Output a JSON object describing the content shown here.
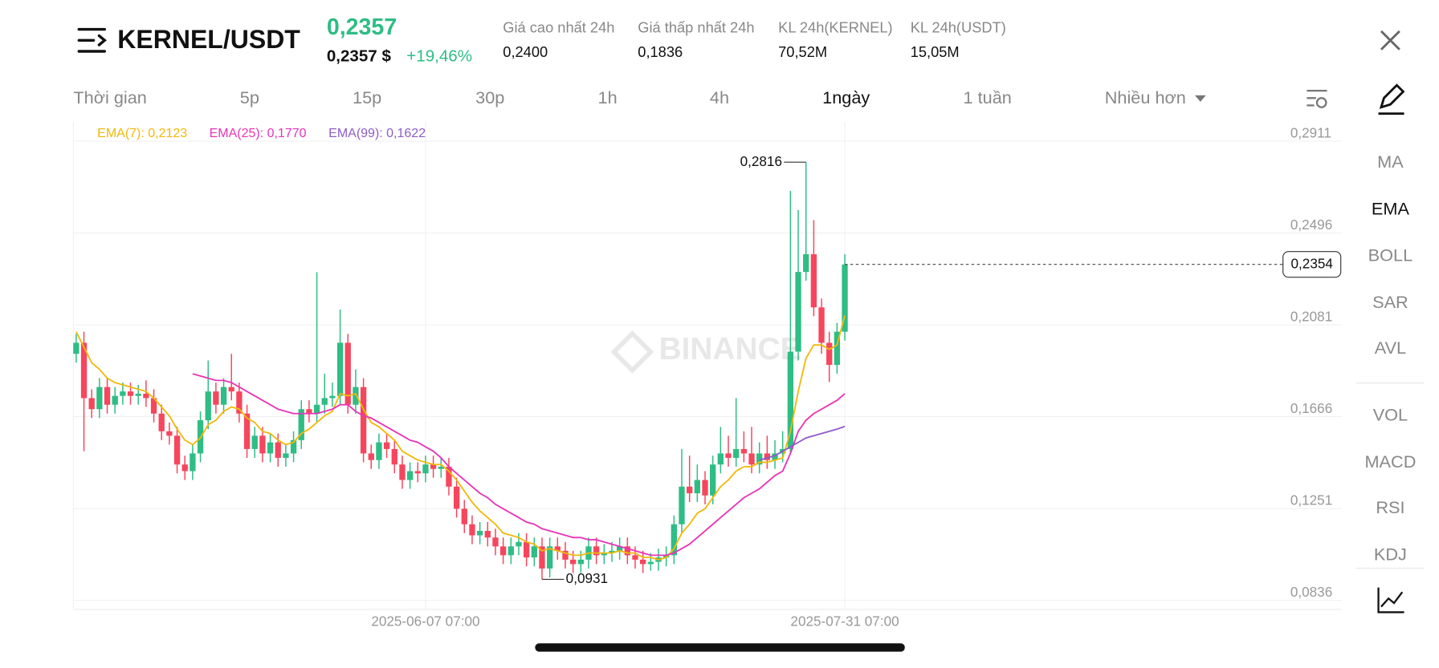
{
  "header": {
    "pair": "KERNEL/USDT",
    "price": "0,2357",
    "price_usd": "0,2357 $",
    "change": "+19,46%",
    "stats": [
      {
        "label": "Giá cao nhất 24h",
        "value": "0,2400"
      },
      {
        "label": "Giá thấp nhất 24h",
        "value": "0,1836"
      },
      {
        "label": "KL 24h(KERNEL)",
        "value": "70,52M"
      },
      {
        "label": "KL 24h(USDT)",
        "value": "15,05M"
      }
    ]
  },
  "intervals": [
    "Thời gian",
    "5p",
    "15p",
    "30p",
    "1h",
    "4h",
    "1ngày",
    "1 tuần",
    "Nhiều hơn"
  ],
  "side_indicators": [
    "MA",
    "EMA",
    "BOLL",
    "SAR",
    "AVL",
    "VOL",
    "MACD",
    "RSI",
    "KDJ"
  ],
  "chart_data": {
    "type": "candlestick",
    "watermark": "BINANCE",
    "up_color": "#2ebd85",
    "down_color": "#f6465d",
    "open": [
      0.195,
      0.2,
      0.175,
      0.17,
      0.18,
      0.172,
      0.176,
      0.178,
      0.176,
      0.177,
      0.175,
      0.168,
      0.16,
      0.158,
      0.145,
      0.142,
      0.15,
      0.165,
      0.178,
      0.172,
      0.18,
      0.178,
      0.168,
      0.152,
      0.158,
      0.15,
      0.155,
      0.148,
      0.15,
      0.156,
      0.17,
      0.168,
      0.172,
      0.175,
      0.176,
      0.2,
      0.172,
      0.18,
      0.15,
      0.147,
      0.155,
      0.152,
      0.145,
      0.138,
      0.142,
      0.141,
      0.145,
      0.143,
      0.144,
      0.135,
      0.125,
      0.118,
      0.113,
      0.115,
      0.112,
      0.108,
      0.104,
      0.108,
      0.11,
      0.103,
      0.108,
      0.098,
      0.108,
      0.106,
      0.102,
      0.1,
      0.102,
      0.108,
      0.104,
      0.105,
      0.106,
      0.108,
      0.104,
      0.102,
      0.1,
      0.101,
      0.103,
      0.104,
      0.118,
      0.135,
      0.132,
      0.138,
      0.131,
      0.145,
      0.15,
      0.148,
      0.152,
      0.15,
      0.145,
      0.15,
      0.147,
      0.15,
      0.152,
      0.196,
      0.232,
      0.24,
      0.216,
      0.2,
      0.19,
      0.205
    ],
    "high": [
      0.204,
      0.205,
      0.179,
      0.184,
      0.184,
      0.18,
      0.182,
      0.182,
      0.181,
      0.183,
      0.179,
      0.172,
      0.164,
      0.162,
      0.149,
      0.154,
      0.169,
      0.192,
      0.182,
      0.184,
      0.195,
      0.182,
      0.172,
      0.162,
      0.162,
      0.159,
      0.159,
      0.154,
      0.16,
      0.174,
      0.174,
      0.2319,
      0.186,
      0.182,
      0.215,
      0.204,
      0.188,
      0.184,
      0.154,
      0.159,
      0.159,
      0.156,
      0.149,
      0.146,
      0.146,
      0.149,
      0.149,
      0.148,
      0.148,
      0.139,
      0.129,
      0.122,
      0.119,
      0.119,
      0.116,
      0.112,
      0.112,
      0.114,
      0.114,
      0.112,
      0.112,
      0.112,
      0.112,
      0.11,
      0.106,
      0.106,
      0.112,
      0.112,
      0.109,
      0.11,
      0.112,
      0.112,
      0.108,
      0.106,
      0.105,
      0.107,
      0.108,
      0.122,
      0.152,
      0.149,
      0.145,
      0.142,
      0.149,
      0.162,
      0.158,
      0.175,
      0.16,
      0.162,
      0.155,
      0.158,
      0.156,
      0.16,
      0.2687,
      0.26,
      0.2816,
      0.2554,
      0.22,
      0.205,
      0.209,
      0.24
    ],
    "low": [
      0.191,
      0.151,
      0.166,
      0.166,
      0.168,
      0.168,
      0.172,
      0.172,
      0.172,
      0.171,
      0.164,
      0.156,
      0.154,
      0.141,
      0.138,
      0.138,
      0.146,
      0.161,
      0.168,
      0.168,
      0.174,
      0.164,
      0.148,
      0.148,
      0.146,
      0.146,
      0.144,
      0.144,
      0.146,
      0.152,
      0.164,
      0.164,
      0.168,
      0.171,
      0.172,
      0.168,
      0.168,
      0.146,
      0.143,
      0.143,
      0.148,
      0.141,
      0.134,
      0.134,
      0.137,
      0.137,
      0.139,
      0.139,
      0.131,
      0.121,
      0.114,
      0.109,
      0.109,
      0.108,
      0.104,
      0.1,
      0.1,
      0.104,
      0.099,
      0.099,
      0.0931,
      0.094,
      0.102,
      0.098,
      0.096,
      0.096,
      0.098,
      0.1,
      0.1,
      0.101,
      0.102,
      0.1,
      0.098,
      0.096,
      0.097,
      0.097,
      0.099,
      0.1,
      0.114,
      0.128,
      0.128,
      0.127,
      0.127,
      0.141,
      0.144,
      0.144,
      0.146,
      0.141,
      0.141,
      0.143,
      0.143,
      0.146,
      0.15,
      0.192,
      0.228,
      0.212,
      0.195,
      0.1823,
      0.186,
      0.201
    ],
    "close": [
      0.2,
      0.175,
      0.17,
      0.18,
      0.172,
      0.176,
      0.178,
      0.176,
      0.177,
      0.175,
      0.168,
      0.16,
      0.158,
      0.145,
      0.142,
      0.15,
      0.165,
      0.178,
      0.172,
      0.18,
      0.178,
      0.168,
      0.152,
      0.158,
      0.15,
      0.155,
      0.148,
      0.15,
      0.156,
      0.17,
      0.168,
      0.172,
      0.175,
      0.176,
      0.2,
      0.172,
      0.18,
      0.15,
      0.147,
      0.155,
      0.152,
      0.145,
      0.138,
      0.142,
      0.141,
      0.145,
      0.143,
      0.144,
      0.135,
      0.125,
      0.118,
      0.113,
      0.115,
      0.112,
      0.108,
      0.104,
      0.108,
      0.11,
      0.103,
      0.108,
      0.098,
      0.108,
      0.106,
      0.102,
      0.1,
      0.102,
      0.108,
      0.104,
      0.105,
      0.106,
      0.108,
      0.104,
      0.102,
      0.1,
      0.101,
      0.103,
      0.104,
      0.118,
      0.135,
      0.132,
      0.138,
      0.131,
      0.145,
      0.15,
      0.148,
      0.152,
      0.15,
      0.145,
      0.15,
      0.147,
      0.15,
      0.152,
      0.196,
      0.232,
      0.24,
      0.216,
      0.2,
      0.19,
      0.205,
      0.2354
    ],
    "series": [
      {
        "name": "EMA(7): 0,2123",
        "color": "#f0b90b",
        "values": [
          0.205,
          0.198,
          0.191,
          0.188,
          0.184,
          0.182,
          0.181,
          0.18,
          0.179,
          0.178,
          0.175,
          0.171,
          0.167,
          0.161,
          0.156,
          0.154,
          0.157,
          0.163,
          0.165,
          0.169,
          0.171,
          0.17,
          0.166,
          0.164,
          0.16,
          0.159,
          0.156,
          0.154,
          0.155,
          0.159,
          0.161,
          0.164,
          0.167,
          0.169,
          0.177,
          0.176,
          0.177,
          0.17,
          0.164,
          0.162,
          0.159,
          0.156,
          0.151,
          0.149,
          0.147,
          0.146,
          0.145,
          0.145,
          0.142,
          0.138,
          0.133,
          0.128,
          0.124,
          0.121,
          0.118,
          0.114,
          0.113,
          0.112,
          0.11,
          0.109,
          0.106,
          0.107,
          0.106,
          0.105,
          0.104,
          0.104,
          0.105,
          0.105,
          0.105,
          0.105,
          0.106,
          0.105,
          0.105,
          0.103,
          0.103,
          0.102,
          0.103,
          0.107,
          0.114,
          0.118,
          0.123,
          0.125,
          0.13,
          0.135,
          0.138,
          0.142,
          0.144,
          0.144,
          0.146,
          0.146,
          0.147,
          0.148,
          0.16,
          0.178,
          0.193,
          0.199,
          0.199,
          0.197,
          0.199,
          0.2123
        ]
      },
      {
        "name": "EMA(25): 0,1770",
        "color": "#e834b8",
        "values": [
          null,
          null,
          null,
          null,
          null,
          null,
          null,
          null,
          null,
          null,
          null,
          null,
          null,
          null,
          null,
          0.186,
          0.185,
          0.184,
          0.183,
          0.183,
          0.182,
          0.18,
          0.178,
          0.176,
          0.174,
          0.172,
          0.17,
          0.169,
          0.168,
          0.168,
          0.168,
          0.168,
          0.169,
          0.17,
          0.172,
          0.172,
          0.169,
          0.167,
          0.166,
          0.164,
          0.162,
          0.16,
          0.158,
          0.156,
          0.155,
          0.153,
          0.151,
          0.148,
          0.144,
          0.141,
          0.138,
          0.135,
          0.132,
          0.13,
          0.127,
          0.125,
          0.123,
          0.121,
          0.119,
          0.118,
          0.116,
          0.115,
          0.114,
          0.113,
          0.112,
          0.112,
          0.111,
          0.111,
          0.11,
          0.109,
          0.108,
          0.107,
          0.106,
          0.105,
          0.104,
          0.104,
          0.104,
          0.105,
          0.107,
          0.109,
          0.112,
          0.115,
          0.118,
          0.121,
          0.124,
          0.127,
          0.13,
          0.132,
          0.134,
          0.137,
          0.14,
          0.142,
          0.15,
          0.16,
          0.165,
          0.168,
          0.17,
          0.172,
          0.174,
          0.177
        ]
      },
      {
        "name": "EMA(99): 0,1622",
        "color": "#8e5cc8",
        "values": [
          null,
          null,
          null,
          null,
          null,
          null,
          null,
          null,
          null,
          null,
          null,
          null,
          null,
          null,
          null,
          null,
          null,
          null,
          null,
          null,
          null,
          null,
          null,
          null,
          null,
          null,
          null,
          null,
          null,
          null,
          null,
          null,
          null,
          null,
          null,
          null,
          null,
          null,
          null,
          null,
          null,
          null,
          null,
          null,
          null,
          null,
          null,
          null,
          null,
          null,
          null,
          null,
          null,
          null,
          null,
          null,
          null,
          null,
          null,
          null,
          null,
          null,
          null,
          null,
          null,
          null,
          null,
          null,
          null,
          null,
          null,
          null,
          null,
          null,
          null,
          null,
          null,
          null,
          null,
          null,
          null,
          null,
          null,
          null,
          null,
          null,
          null,
          null,
          0.147,
          0.148,
          0.149,
          0.151,
          0.153,
          0.155,
          0.157,
          0.158,
          0.159,
          0.16,
          0.161,
          0.1622
        ]
      }
    ],
    "ylim": [
      0.0795,
      0.2998
    ],
    "yticks": [
      {
        "value": 0.2911,
        "label": "0,2911"
      },
      {
        "value": 0.2496,
        "label": "0,2496"
      },
      {
        "value": 0.2081,
        "label": "0,2081"
      },
      {
        "value": 0.1666,
        "label": "0,1666"
      },
      {
        "value": 0.1251,
        "label": "0,1251"
      },
      {
        "value": 0.0836,
        "label": "0,0836"
      }
    ],
    "xticks": [
      {
        "value": 45,
        "label": "2025-06-07 07:00"
      },
      {
        "value": 99,
        "label": "2025-07-31 07:00"
      }
    ],
    "annotations": [
      {
        "index": 94,
        "value": 0.2816,
        "label": "0,2816"
      },
      {
        "index": 60,
        "value": 0.0931,
        "label": "0,0931"
      }
    ],
    "last_price": {
      "value": 0.2354,
      "label": "0,2354"
    },
    "grid": true
  }
}
